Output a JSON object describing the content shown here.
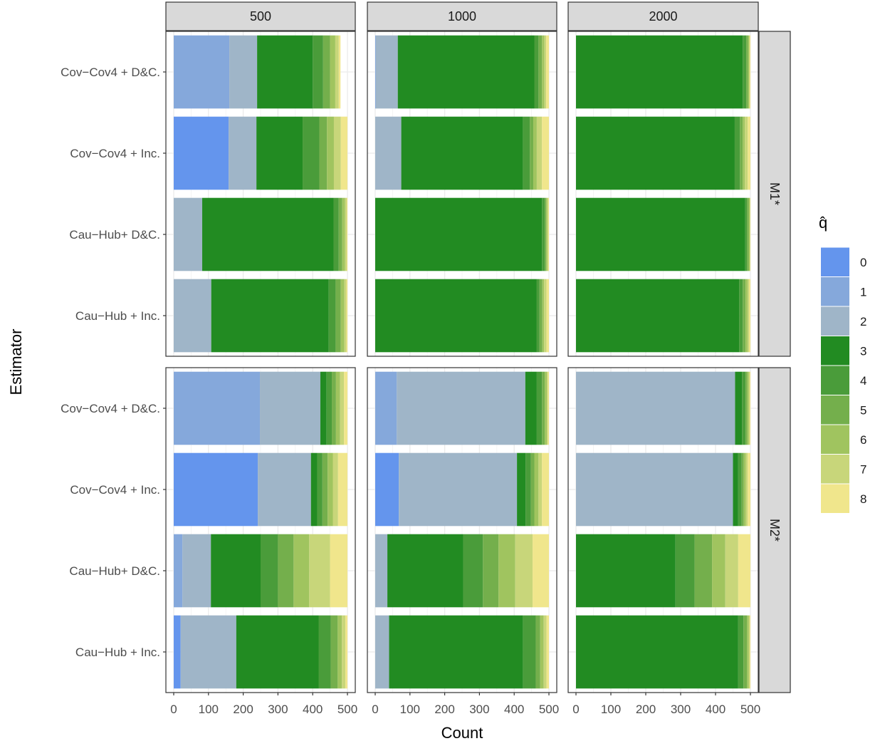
{
  "chart_data": {
    "type": "bar",
    "orientation": "horizontal",
    "stacked": true,
    "xlabel": "Count",
    "ylabel": "Estimator",
    "xlim": [
      0,
      500
    ],
    "x_ticks": [
      "0",
      "100",
      "200",
      "300",
      "400",
      "500"
    ],
    "col_facets": [
      "500",
      "1000",
      "2000"
    ],
    "row_facets": [
      "M1*",
      "M2*"
    ],
    "categories": [
      "Cov−Cov4 + D&C.",
      "Cov−Cov4 + Inc.",
      "Cau−Hub+ D&C.",
      "Cau−Hub + Inc."
    ],
    "legend": {
      "title": "q̂",
      "position": "right",
      "levels": [
        "0",
        "1",
        "2",
        "3",
        "4",
        "5",
        "6",
        "7",
        "8"
      ],
      "colors": [
        "#6495ED",
        "#85A8DB",
        "#9FB5C8",
        "#228B22",
        "#4A9C3A",
        "#74AF4C",
        "#A0C45F",
        "#C8D67A",
        "#F0E68C"
      ]
    },
    "grid": true,
    "panels": [
      {
        "row": "M1*",
        "col": "500",
        "bars": [
          [
            0,
            160,
            80,
            160,
            30,
            20,
            15,
            10,
            5
          ],
          [
            158,
            0,
            80,
            133,
            48,
            22,
            20,
            20,
            19
          ],
          [
            0,
            0,
            82,
            378,
            15,
            10,
            8,
            5,
            2
          ],
          [
            0,
            0,
            108,
            338,
            20,
            15,
            10,
            6,
            3
          ]
        ]
      },
      {
        "row": "M1*",
        "col": "1000",
        "bars": [
          [
            0,
            2,
            63,
            393,
            12,
            10,
            7,
            5,
            8
          ],
          [
            0,
            0,
            75,
            350,
            20,
            10,
            10,
            15,
            20
          ],
          [
            0,
            0,
            0,
            480,
            8,
            4,
            3,
            3,
            2
          ],
          [
            0,
            0,
            0,
            465,
            8,
            8,
            5,
            7,
            7
          ]
        ]
      },
      {
        "row": "M1*",
        "col": "2000",
        "bars": [
          [
            0,
            0,
            0,
            478,
            10,
            5,
            3,
            2,
            2
          ],
          [
            0,
            0,
            0,
            455,
            15,
            8,
            6,
            8,
            8
          ],
          [
            0,
            0,
            0,
            485,
            5,
            5,
            3,
            1,
            1
          ],
          [
            0,
            0,
            0,
            468,
            10,
            8,
            6,
            4,
            4
          ]
        ]
      },
      {
        "row": "M2*",
        "col": "500",
        "bars": [
          [
            0,
            248,
            174,
            18,
            15,
            12,
            12,
            11,
            10
          ],
          [
            242,
            0,
            153,
            18,
            15,
            15,
            15,
            15,
            27
          ],
          [
            0,
            25,
            82,
            143,
            50,
            45,
            45,
            60,
            50
          ],
          [
            20,
            0,
            160,
            237,
            35,
            20,
            12,
            10,
            6
          ]
        ]
      },
      {
        "row": "M2*",
        "col": "1000",
        "bars": [
          [
            0,
            62,
            370,
            33,
            15,
            8,
            6,
            3,
            3
          ],
          [
            68,
            0,
            340,
            25,
            15,
            10,
            12,
            10,
            20
          ],
          [
            0,
            0,
            35,
            218,
            57,
            45,
            48,
            50,
            47
          ],
          [
            0,
            0,
            40,
            385,
            37,
            13,
            10,
            8,
            7
          ]
        ]
      },
      {
        "row": "M2*",
        "col": "2000",
        "bars": [
          [
            0,
            0,
            456,
            20,
            10,
            5,
            4,
            3,
            2
          ],
          [
            0,
            0,
            450,
            15,
            10,
            6,
            6,
            5,
            8
          ],
          [
            0,
            0,
            0,
            285,
            55,
            50,
            38,
            37,
            35
          ],
          [
            0,
            0,
            0,
            465,
            15,
            10,
            5,
            3,
            2
          ]
        ]
      }
    ]
  }
}
